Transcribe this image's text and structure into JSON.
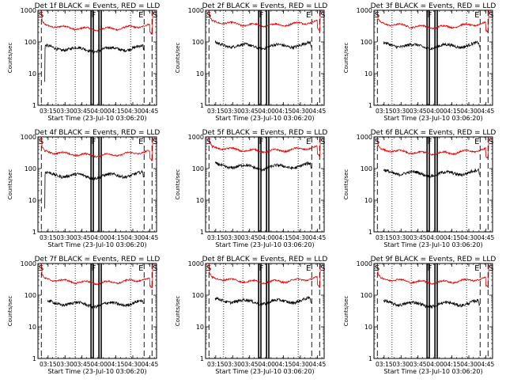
{
  "chart_data": {
    "type": "line",
    "shared": {
      "ylabel": "Counts/sec",
      "xlabel": "Start Time (23-Jul-10 03:06:20)",
      "yscale": "log",
      "ylim": [
        1,
        1000
      ],
      "yticks": [
        {
          "value": 1,
          "label": "1"
        },
        {
          "value": 10,
          "label": "10"
        },
        {
          "value": 100,
          "label": "100"
        },
        {
          "value": 1000,
          "label": "1000"
        }
      ],
      "xlim_minutes_after_0306": [
        0,
        105
      ],
      "xticks": [
        {
          "t": 9,
          "label": "03:15"
        },
        {
          "t": 24,
          "label": "03:30"
        },
        {
          "t": 39,
          "label": "03:45"
        },
        {
          "t": 54,
          "label": "04:00"
        },
        {
          "t": 69,
          "label": "04:15"
        },
        {
          "t": 84,
          "label": "04:30"
        },
        {
          "t": 99,
          "label": "04:45"
        }
      ],
      "series_colors": {
        "events": "#000000",
        "lld": "#e00000"
      },
      "flags": [
        "S",
        "F",
        "E",
        "S"
      ]
    },
    "panels": [
      {
        "title": "Det 1f BLACK = Events, RED = LLD",
        "lld_level": 320,
        "events_level": 68,
        "events_has_spike": true,
        "vlines": {
          "dashed": [
            3,
            94,
            101
          ],
          "dotted": [
            16,
            33,
            82
          ],
          "solid": [
            47,
            49,
            54,
            56
          ]
        }
      },
      {
        "title": "Det 2f BLACK = Events, RED = LLD",
        "lld_level": 420,
        "events_level": 85,
        "events_has_spike": false,
        "vlines": {
          "dashed": [
            3,
            94,
            101
          ],
          "dotted": [
            16,
            33,
            82
          ],
          "solid": [
            47,
            49,
            54,
            56
          ]
        }
      },
      {
        "title": "Det 3f BLACK = Events, RED = LLD",
        "lld_level": 370,
        "events_level": 85,
        "events_has_spike": false,
        "vlines": {
          "dashed": [
            3,
            94,
            101
          ],
          "dotted": [
            16,
            33,
            82
          ],
          "solid": [
            47,
            49,
            54,
            56
          ]
        }
      },
      {
        "title": "Det 4f BLACK = Events, RED = LLD",
        "lld_level": 330,
        "events_level": 68,
        "events_has_spike": true,
        "vlines": {
          "dashed": [
            3,
            94,
            101
          ],
          "dotted": [
            16,
            33,
            82
          ],
          "solid": [
            47,
            49,
            54,
            56
          ]
        }
      },
      {
        "title": "Det 5f BLACK = Events, RED = LLD",
        "lld_level": 450,
        "events_level": 130,
        "events_has_spike": false,
        "vlines": {
          "dashed": [
            3,
            94,
            101
          ],
          "dotted": [
            16,
            33,
            82
          ],
          "solid": [
            47,
            49,
            54,
            56
          ]
        }
      },
      {
        "title": "Det 6f BLACK = Events, RED = LLD",
        "lld_level": 380,
        "events_level": 80,
        "events_has_spike": false,
        "vlines": {
          "dashed": [
            3,
            94,
            101
          ],
          "dotted": [
            16,
            33,
            82
          ],
          "solid": [
            47,
            49,
            54,
            56
          ]
        }
      },
      {
        "title": "Det 7f BLACK = Events, RED = LLD",
        "lld_level": 310,
        "events_level": 60,
        "events_has_spike": false,
        "vlines": {
          "dashed": [
            3,
            94,
            101
          ],
          "dotted": [
            16,
            33,
            82
          ],
          "solid": [
            47,
            49,
            54,
            56
          ]
        }
      },
      {
        "title": "Det 8f BLACK = Events, RED = LLD",
        "lld_level": 330,
        "events_level": 72,
        "events_has_spike": false,
        "vlines": {
          "dashed": [
            3,
            94,
            101
          ],
          "dotted": [
            16,
            33,
            82
          ],
          "solid": [
            47,
            49,
            54,
            56
          ]
        }
      },
      {
        "title": "Det 9f BLACK = Events, RED = LLD",
        "lld_level": 320,
        "events_level": 60,
        "events_has_spike": false,
        "vlines": {
          "dashed": [
            3,
            94,
            101
          ],
          "dotted": [
            16,
            33,
            82
          ],
          "solid": [
            47,
            49,
            54,
            56
          ]
        }
      }
    ]
  }
}
